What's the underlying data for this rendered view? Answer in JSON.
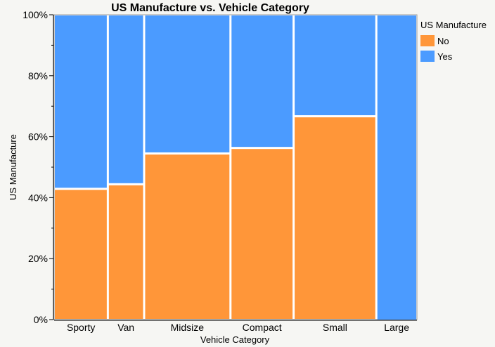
{
  "chart_data": {
    "type": "mosaic",
    "title": "US Manufacture vs. Vehicle Category",
    "xlabel": "Vehicle Category",
    "ylabel": "US Manufacture",
    "ylim": [
      0,
      100
    ],
    "yticks": [
      "0%",
      "20%",
      "40%",
      "60%",
      "80%",
      "100%"
    ],
    "categories": [
      "Sporty",
      "Van",
      "Midsize",
      "Compact",
      "Small",
      "Large"
    ],
    "column_share": [
      0.148,
      0.1,
      0.238,
      0.174,
      0.228,
      0.112
    ],
    "series": [
      {
        "name": "No",
        "color": "#ff9639",
        "values": [
          42.9,
          44.4,
          54.5,
          56.3,
          66.7,
          0
        ]
      },
      {
        "name": "Yes",
        "color": "#4b9bff",
        "values": [
          57.1,
          55.6,
          45.5,
          43.7,
          33.3,
          100
        ]
      }
    ],
    "legend": {
      "title": "US Manufacture",
      "placement": "right"
    },
    "grid": false
  }
}
